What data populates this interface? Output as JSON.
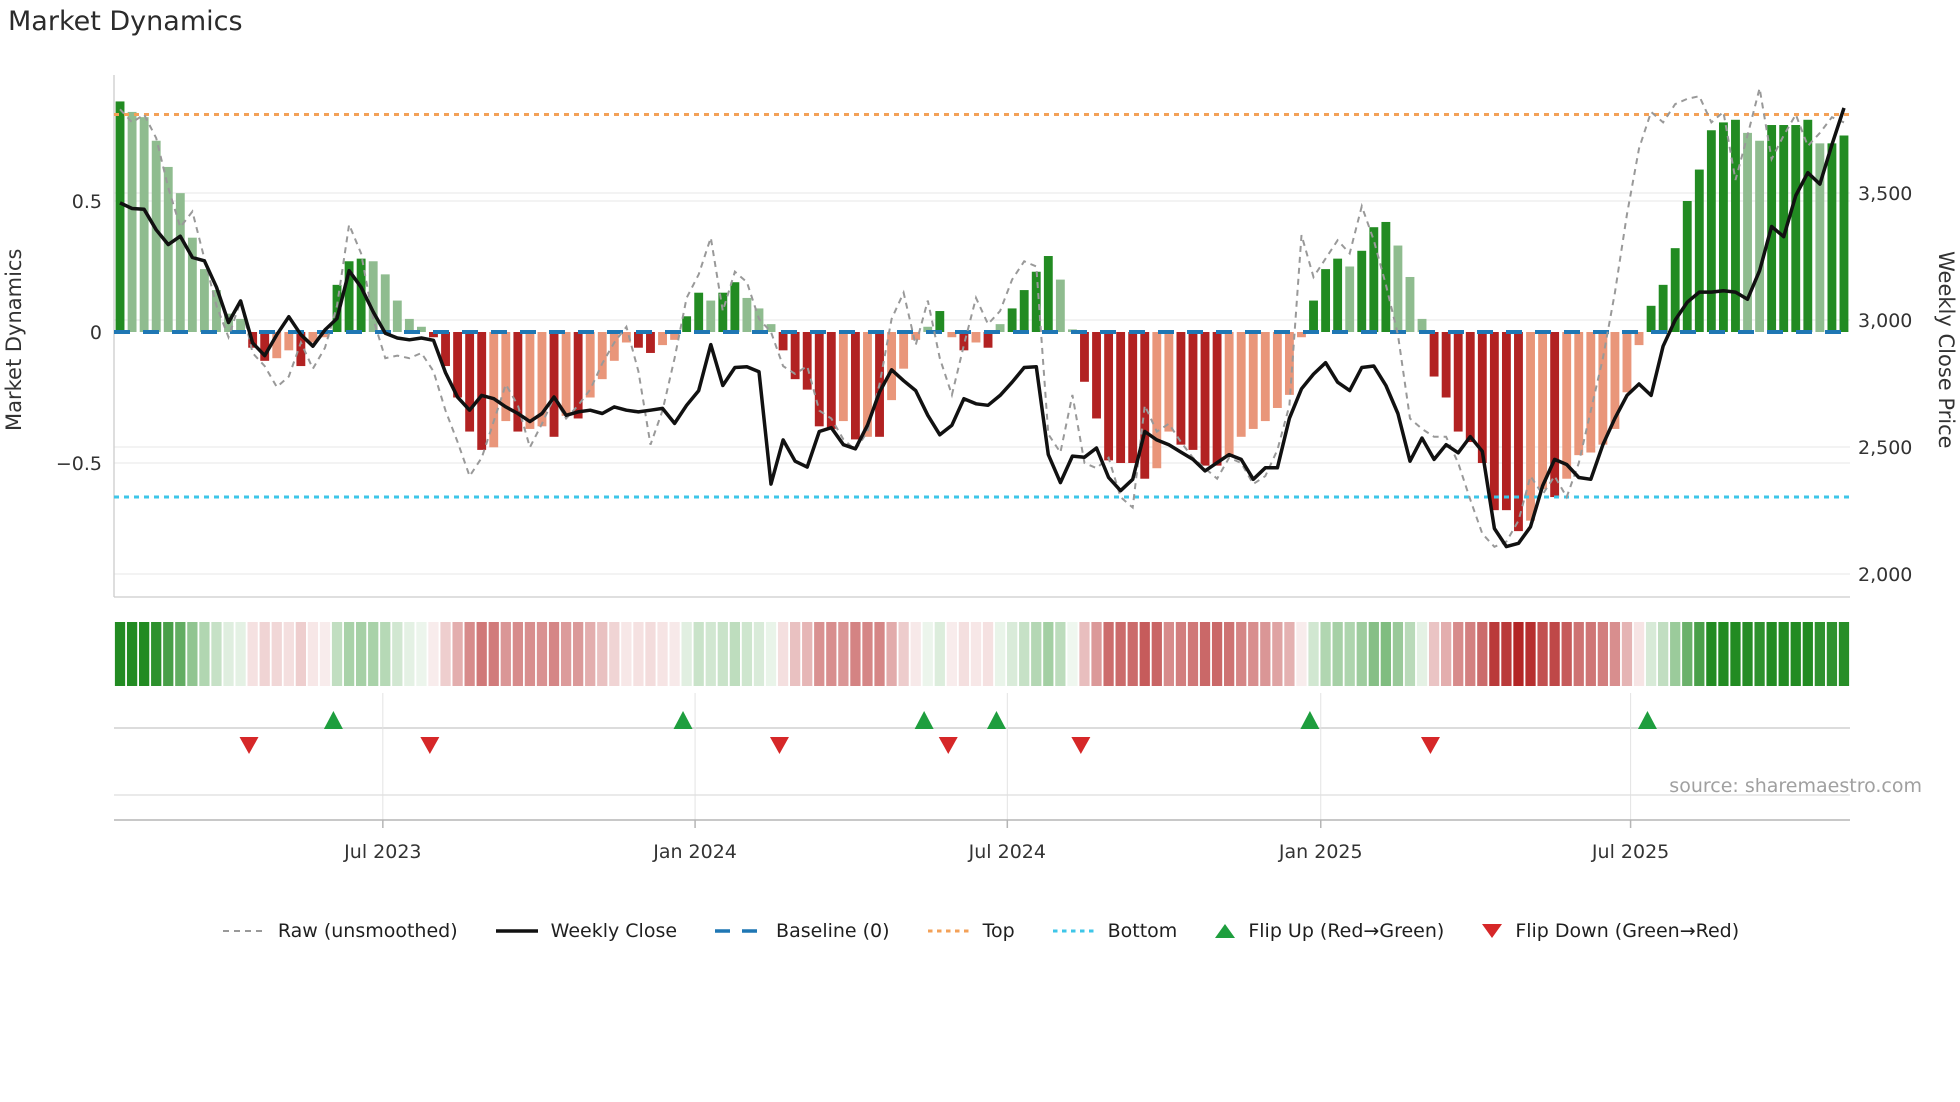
{
  "title": "Market Dynamics",
  "source": "source: sharemaestro.com",
  "axes": {
    "left_label": "Market Dynamics",
    "right_label": "Weekly Close Price",
    "left_ticks": [
      {
        "label": "0.5",
        "value": 0.5
      },
      {
        "label": "0",
        "value": 0.0
      },
      {
        "label": "−0.5",
        "value": -0.5
      }
    ],
    "right_ticks": [
      {
        "label": "3,500",
        "value": 3500
      },
      {
        "label": "3,000",
        "value": 3000
      },
      {
        "label": "2,500",
        "value": 2500
      },
      {
        "label": "2,000",
        "value": 2000
      }
    ],
    "x_ticks": [
      {
        "label": "Jul 2023",
        "week": 21.8
      },
      {
        "label": "Jan 2024",
        "week": 47.7
      },
      {
        "label": "Jul 2024",
        "week": 73.6
      },
      {
        "label": "Jan 2025",
        "week": 99.6
      },
      {
        "label": "Jul 2025",
        "week": 125.3
      }
    ]
  },
  "colors": {
    "bar_strong_green": "#228B22",
    "bar_weak_green": "#8FBC8F",
    "bar_strong_red": "#B22222",
    "bar_weak_red": "#E9967A",
    "baseline": "#1f77b4",
    "top_line": "#f3a158",
    "bottom_line": "#3ec6e8",
    "raw_line": "#999999",
    "close_line": "#111111",
    "flip_up": "#1e9e3e",
    "flip_down": "#d62728",
    "grid": "#ececec",
    "axis": "#b5b5b5",
    "text": "#333333",
    "source_text": "#a0a0a0"
  },
  "legend": {
    "items": [
      {
        "label": "Raw (unsmoothed)",
        "swatch": "dash-gray"
      },
      {
        "label": "Weekly Close",
        "swatch": "solid-black"
      },
      {
        "label": "Baseline (0)",
        "swatch": "dash-blue"
      },
      {
        "label": "Top",
        "swatch": "dot-orange"
      },
      {
        "label": "Bottom",
        "swatch": "dot-cyan"
      },
      {
        "label": "Flip Up (Red→Green)",
        "swatch": "tri-up"
      },
      {
        "label": "Flip Down (Green→Red)",
        "swatch": "tri-down"
      }
    ]
  },
  "chart_data": {
    "type": "bar",
    "description": "Weekly market-dynamics oscillator (bars, left axis) with raw unsmoothed oscillator (gray dashed), weekly close price (black, right axis), heatmap strip of the oscillator and flip markers",
    "weeks": 144,
    "ylabel_left": "Market Dynamics",
    "ylabel_right": "Weekly Close Price",
    "ylim_left": [
      -1.0,
      1.0
    ],
    "ylim_right": [
      1950,
      3980
    ],
    "baseline_value": 0,
    "top_line_value": 0.83,
    "bottom_line_value": -0.63,
    "grid": true,
    "legend_position": "bottom",
    "osc_smoothed": [
      0.88,
      0.84,
      0.82,
      0.73,
      0.63,
      0.53,
      0.36,
      0.24,
      0.16,
      0.07,
      0.05,
      -0.06,
      -0.11,
      -0.1,
      -0.07,
      -0.13,
      -0.04,
      -0.02,
      0.18,
      0.27,
      0.28,
      0.27,
      0.22,
      0.12,
      0.05,
      0.02,
      -0.02,
      -0.13,
      -0.25,
      -0.38,
      -0.45,
      -0.44,
      -0.34,
      -0.38,
      -0.37,
      -0.36,
      -0.4,
      -0.32,
      -0.33,
      -0.25,
      -0.18,
      -0.11,
      -0.04,
      -0.06,
      -0.08,
      -0.05,
      -0.03,
      0.06,
      0.15,
      0.12,
      0.15,
      0.19,
      0.13,
      0.09,
      0.03,
      -0.07,
      -0.18,
      -0.22,
      -0.36,
      -0.37,
      -0.34,
      -0.41,
      -0.4,
      -0.4,
      -0.26,
      -0.14,
      -0.03,
      0.02,
      0.08,
      -0.02,
      -0.07,
      -0.04,
      -0.06,
      0.03,
      0.09,
      0.16,
      0.23,
      0.29,
      0.2,
      0.01,
      -0.19,
      -0.33,
      -0.49,
      -0.5,
      -0.5,
      -0.56,
      -0.52,
      -0.38,
      -0.43,
      -0.45,
      -0.51,
      -0.51,
      -0.47,
      -0.4,
      -0.37,
      -0.34,
      -0.29,
      -0.24,
      -0.02,
      0.12,
      0.24,
      0.28,
      0.25,
      0.31,
      0.4,
      0.42,
      0.33,
      0.21,
      0.05,
      -0.17,
      -0.25,
      -0.38,
      -0.42,
      -0.5,
      -0.68,
      -0.68,
      -0.76,
      -0.72,
      -0.6,
      -0.63,
      -0.56,
      -0.47,
      -0.46,
      -0.43,
      -0.37,
      -0.23,
      -0.05,
      0.1,
      0.18,
      0.32,
      0.5,
      0.62,
      0.77,
      0.8,
      0.81,
      0.76,
      0.73,
      0.79,
      0.79,
      0.79,
      0.81,
      0.72,
      0.72,
      0.75
    ],
    "osc_raw": [
      0.85,
      0.8,
      0.83,
      0.74,
      0.55,
      0.4,
      0.46,
      0.28,
      0.1,
      -0.02,
      0.12,
      -0.08,
      -0.13,
      -0.21,
      -0.17,
      -0.04,
      -0.14,
      -0.06,
      0.1,
      0.41,
      0.3,
      0.05,
      -0.1,
      -0.09,
      -0.1,
      -0.08,
      -0.15,
      -0.3,
      -0.42,
      -0.55,
      -0.48,
      -0.34,
      -0.2,
      -0.28,
      -0.44,
      -0.35,
      -0.25,
      -0.33,
      -0.28,
      -0.22,
      -0.12,
      -0.04,
      0.02,
      -0.15,
      -0.43,
      -0.3,
      -0.1,
      0.13,
      0.22,
      0.36,
      0.08,
      0.23,
      0.19,
      0.05,
      0.0,
      -0.13,
      -0.16,
      -0.13,
      -0.3,
      -0.33,
      -0.41,
      -0.45,
      -0.38,
      -0.2,
      0.05,
      0.15,
      -0.05,
      0.12,
      -0.1,
      -0.24,
      -0.05,
      0.13,
      0.03,
      0.08,
      0.2,
      0.27,
      0.25,
      -0.39,
      -0.46,
      -0.24,
      -0.5,
      -0.52,
      -0.48,
      -0.63,
      -0.67,
      -0.28,
      -0.38,
      -0.35,
      -0.42,
      -0.48,
      -0.52,
      -0.56,
      -0.48,
      -0.5,
      -0.58,
      -0.55,
      -0.45,
      -0.28,
      0.37,
      0.21,
      0.28,
      0.35,
      0.3,
      0.48,
      0.35,
      0.18,
      -0.01,
      -0.33,
      -0.37,
      -0.4,
      -0.4,
      -0.5,
      -0.64,
      -0.77,
      -0.82,
      -0.8,
      -0.72,
      -0.55,
      -0.62,
      -0.55,
      -0.63,
      -0.5,
      -0.3,
      -0.1,
      0.15,
      0.45,
      0.7,
      0.84,
      0.8,
      0.87,
      0.89,
      0.9,
      0.8,
      0.84,
      0.58,
      0.75,
      0.93,
      0.66,
      0.75,
      0.83,
      0.71,
      0.76,
      0.82,
      0.8
    ],
    "close_price": [
      3461,
      3439,
      3436,
      3355,
      3297,
      3330,
      3246,
      3233,
      3129,
      2990,
      3075,
      2910,
      2860,
      2942,
      3013,
      2942,
      2897,
      2961,
      3006,
      3194,
      3129,
      3032,
      2948,
      2929,
      2922,
      2929,
      2920,
      2793,
      2696,
      2645,
      2703,
      2690,
      2658,
      2632,
      2600,
      2632,
      2697,
      2625,
      2638,
      2645,
      2632,
      2658,
      2645,
      2638,
      2645,
      2652,
      2593,
      2664,
      2722,
      2903,
      2742,
      2813,
      2816,
      2796,
      2354,
      2528,
      2444,
      2421,
      2561,
      2576,
      2509,
      2493,
      2586,
      2716,
      2804,
      2761,
      2722,
      2625,
      2548,
      2586,
      2690,
      2670,
      2664,
      2703,
      2755,
      2813,
      2816,
      2470,
      2360,
      2464,
      2460,
      2496,
      2380,
      2328,
      2373,
      2561,
      2528,
      2509,
      2480,
      2451,
      2406,
      2438,
      2470,
      2451,
      2373,
      2418,
      2418,
      2613,
      2729,
      2787,
      2832,
      2755,
      2722,
      2813,
      2819,
      2742,
      2632,
      2444,
      2535,
      2451,
      2509,
      2477,
      2541,
      2483,
      2179,
      2108,
      2121,
      2186,
      2347,
      2451,
      2431,
      2380,
      2373,
      2509,
      2613,
      2703,
      2748,
      2703,
      2897,
      3000,
      3070,
      3110,
      3110,
      3115,
      3110,
      3082,
      3194,
      3368,
      3328,
      3490,
      3580,
      3535,
      3690,
      3835
    ],
    "flip_up_weeks": [
      18,
      47,
      67,
      73,
      99,
      127
    ],
    "flip_down_weeks": [
      11,
      26,
      55,
      69,
      80,
      109
    ]
  }
}
